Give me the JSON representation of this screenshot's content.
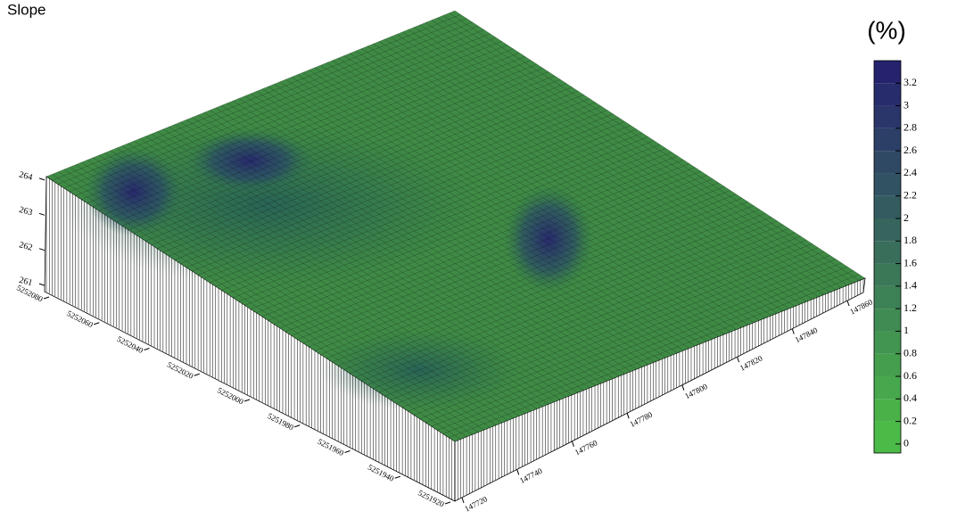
{
  "chart_data": {
    "type": "surface",
    "title": "Slope",
    "colorbar_label": "(%)",
    "clim": [
      -0.08,
      3.4
    ],
    "cticks": [
      0,
      0.2,
      0.4,
      0.6,
      0.8,
      1,
      1.2,
      1.4,
      1.6,
      1.8,
      2,
      2.2,
      2.4,
      2.6,
      2.8,
      3,
      3.2
    ],
    "colors": [
      "#4cba47",
      "#25226e"
    ],
    "zlim": [
      260.8,
      264.2
    ],
    "zticks": [
      261,
      262,
      263,
      264
    ],
    "ylim": [
      5251920,
      5252080
    ],
    "yticks": [
      5251920,
      5251940,
      5251960,
      5251980,
      5252000,
      5252020,
      5252040,
      5252060,
      5252080
    ],
    "xlim": [
      147720,
      147860
    ],
    "xticks": [
      147720,
      147740,
      147760,
      147780,
      147800,
      147820,
      147840,
      147860
    ]
  }
}
